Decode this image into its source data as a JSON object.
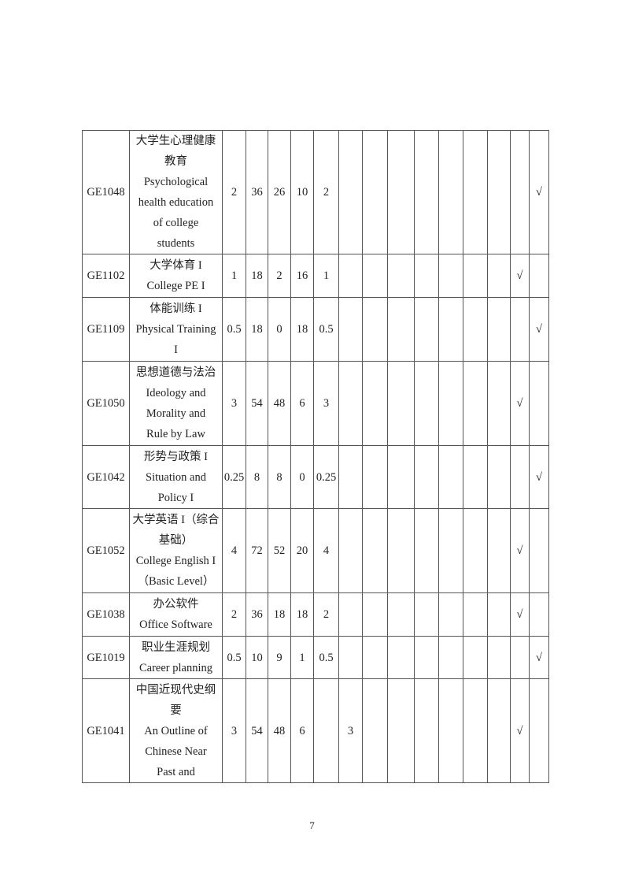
{
  "rows": [
    {
      "code": "GE1048",
      "name": [
        "大学生心理健康",
        "教育",
        "Psychological",
        "health education",
        "of college",
        "students"
      ],
      "cells": [
        "2",
        "36",
        "26",
        "10",
        "2",
        "",
        "",
        "",
        "",
        "",
        "",
        "",
        "",
        "√"
      ]
    },
    {
      "code": "GE1102",
      "name": [
        "大学体育 I",
        "College PE I"
      ],
      "cells": [
        "1",
        "18",
        "2",
        "16",
        "1",
        "",
        "",
        "",
        "",
        "",
        "",
        "",
        "√",
        ""
      ]
    },
    {
      "code": "GE1109",
      "name": [
        "体能训练 I",
        "Physical Training",
        "I"
      ],
      "cells": [
        "0.5",
        "18",
        "0",
        "18",
        "0.5",
        "",
        "",
        "",
        "",
        "",
        "",
        "",
        "",
        "√"
      ]
    },
    {
      "code": "GE1050",
      "name": [
        "思想道德与法治",
        "Ideology and",
        "Morality and",
        "Rule by Law"
      ],
      "cells": [
        "3",
        "54",
        "48",
        "6",
        "3",
        "",
        "",
        "",
        "",
        "",
        "",
        "",
        "√",
        ""
      ]
    },
    {
      "code": "GE1042",
      "name": [
        "形势与政策 I",
        "Situation and",
        "Policy I"
      ],
      "cells": [
        "0.25",
        "8",
        "8",
        "0",
        "0.25",
        "",
        "",
        "",
        "",
        "",
        "",
        "",
        "",
        "√"
      ]
    },
    {
      "code": "GE1052",
      "name": [
        "大学英语 I（综合",
        "基础）",
        "College English I",
        "（Basic Level）"
      ],
      "cells": [
        "4",
        "72",
        "52",
        "20",
        "4",
        "",
        "",
        "",
        "",
        "",
        "",
        "",
        "√",
        ""
      ]
    },
    {
      "code": "GE1038",
      "name": [
        "办公软件",
        "Office Software"
      ],
      "cells": [
        "2",
        "36",
        "18",
        "18",
        "2",
        "",
        "",
        "",
        "",
        "",
        "",
        "",
        "√",
        ""
      ]
    },
    {
      "code": "GE1019",
      "name": [
        "职业生涯规划",
        "Career planning"
      ],
      "cells": [
        "0.5",
        "10",
        "9",
        "1",
        "0.5",
        "",
        "",
        "",
        "",
        "",
        "",
        "",
        "",
        "√"
      ]
    },
    {
      "code": "GE1041",
      "name": [
        "中国近现代史纲",
        "要",
        "An Outline of",
        "Chinese Near",
        "Past and"
      ],
      "cells": [
        "3",
        "54",
        "48",
        "6",
        "",
        "3",
        "",
        "",
        "",
        "",
        "",
        "",
        "√",
        ""
      ]
    }
  ],
  "page_number": "7"
}
